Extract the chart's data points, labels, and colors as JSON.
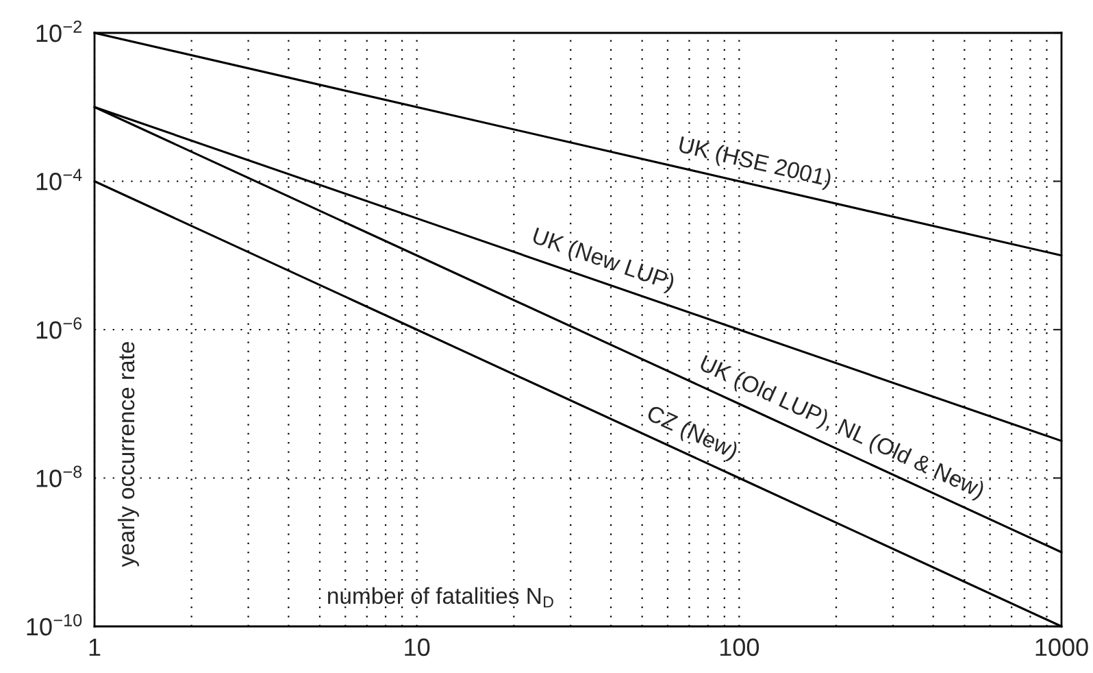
{
  "chart_data": {
    "type": "line",
    "xlabel": "number of fatalities N$_{D}$",
    "ylabel": "yearly occurrence rate",
    "log": "xy",
    "grid": true,
    "marker": "none",
    "line_style": "solid",
    "xlim": [
      1,
      1000
    ],
    "ylim": [
      1e-10,
      0.01
    ],
    "xticks": [
      1,
      {
        "value": 2,
        "label": null
      },
      {
        "value": 3,
        "label": null
      },
      {
        "value": 4,
        "label": null
      },
      {
        "value": 5,
        "label": null
      },
      {
        "value": 6,
        "label": null
      },
      {
        "value": 7,
        "label": null
      },
      {
        "value": 8,
        "label": null
      },
      {
        "value": 9,
        "label": null
      },
      10,
      {
        "value": 20,
        "label": null
      },
      {
        "value": 30,
        "label": null
      },
      {
        "value": 40,
        "label": null
      },
      {
        "value": 50,
        "label": null
      },
      {
        "value": 60,
        "label": null
      },
      {
        "value": 70,
        "label": null
      },
      {
        "value": 80,
        "label": null
      },
      {
        "value": 90,
        "label": null
      },
      100,
      {
        "value": 200,
        "label": null
      },
      {
        "value": 300,
        "label": null
      },
      {
        "value": 400,
        "label": null
      },
      {
        "value": 500,
        "label": null
      },
      {
        "value": 600,
        "label": null
      },
      {
        "value": 700,
        "label": null
      },
      {
        "value": 800,
        "label": null
      },
      {
        "value": 900,
        "label": null
      },
      1000
    ],
    "yticks": [
      {
        "value": 1e-10,
        "label": "10$^{−10}$"
      },
      {
        "value": 1e-08,
        "label": "10$^{−8}$"
      },
      {
        "value": 1e-06,
        "label": "10$^{−6}$"
      },
      {
        "value": 0.0001,
        "label": "10$^{−4}$"
      },
      {
        "value": 0.01,
        "label": "10$^{−2}$"
      }
    ],
    "series": [
      {
        "color": "#000000",
        "x": [
          1,
          10,
          100,
          1000
        ],
        "values": [
          0.01,
          0.001,
          0.0001,
          1e-05
        ]
      },
      {
        "color": "#000000",
        "x": [
          1,
          10,
          100,
          1000
        ],
        "values": [
          0.001,
          3.16e-05,
          1e-06,
          3.16e-08
        ]
      },
      {
        "color": "#000000",
        "x": [
          1,
          10,
          100,
          1000
        ],
        "values": [
          0.001,
          1e-05,
          1e-07,
          1e-09
        ]
      },
      {
        "color": "#000000",
        "x": [
          1,
          10,
          100,
          1000
        ],
        "values": [
          0.0001,
          1e-06,
          1e-08,
          1e-10
        ]
      }
    ],
    "annotations": [
      {
        "text": "UK (HSE 2001)",
        "x": 108,
        "y": 9.3e-05
      },
      {
        "text": "UK (New LUP)",
        "x": 36,
        "y": 4.6e-06
      },
      {
        "text": "UK (Old LUP), NL (Old & New)",
        "x": 195,
        "y": 2.6e-08
      },
      {
        "text": "CZ (New)",
        "x": 67,
        "y": 2.2e-08
      }
    ]
  }
}
